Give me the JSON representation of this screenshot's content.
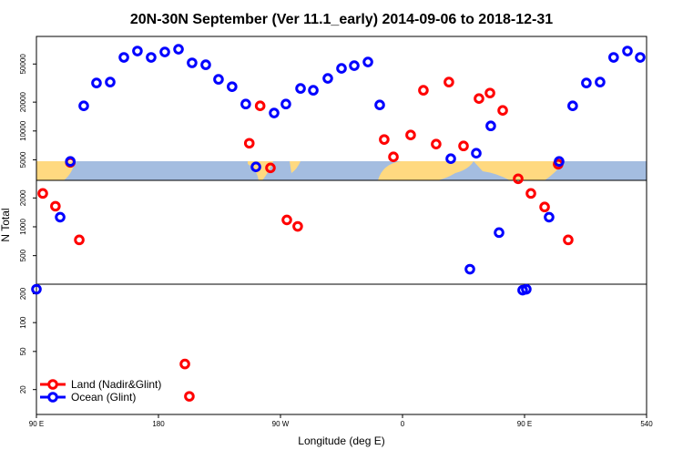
{
  "chart_data": {
    "type": "scatter",
    "title": "20N-30N September (Ver 11.1_early)   2014-09-06 to 2018-12-31",
    "x_label": "Longitude (deg E)",
    "y_label": "N Total",
    "log_y": true,
    "legend": "bottom-left",
    "xlim": [
      90,
      540
    ],
    "xticks": [
      {
        "value": 90,
        "label": "90 E"
      },
      180,
      {
        "value": 270,
        "label": "90 W"
      },
      {
        "value": 360,
        "label": "0"
      },
      {
        "value": 450,
        "label": "90 E"
      },
      540
    ],
    "ylim": [
      11,
      97000
    ],
    "yticks": [
      20,
      50,
      100,
      200,
      500,
      1000,
      2000,
      5000,
      10000,
      20000,
      50000
    ],
    "series": [
      {
        "name": "Land (Nadir&Glint)",
        "color": "#ff0000",
        "x": [
          94.7,
          104,
          115,
          121.6,
          199.5,
          202.8,
          247,
          255,
          262.6,
          274.7,
          282.7,
          346.5,
          353.3,
          366,
          375.4,
          384.8,
          394.2,
          405,
          416.4,
          424.5,
          433.9,
          445.3,
          454.7,
          464.8,
          474.8,
          482.2
        ],
        "values": [
          2230,
          1640,
          4700,
          730,
          37,
          17,
          7450,
          18300,
          4120,
          1180,
          1010,
          8150,
          5370,
          9080,
          26600,
          7300,
          32400,
          6980,
          21800,
          24900,
          16400,
          3170,
          2230,
          1610,
          4500,
          730
        ]
      },
      {
        "name": "Ocean (Glint)",
        "color": "#0000ff",
        "x": [
          90,
          107.5,
          115,
          124.9,
          134.3,
          144.4,
          154.5,
          164.5,
          174.6,
          184.7,
          194.8,
          204.8,
          214.9,
          224.3,
          234.3,
          244.4,
          251.9,
          265.3,
          274,
          284.8,
          294.2,
          304.9,
          315,
          324.4,
          334.5,
          343.2,
          395.6,
          409.7,
          414.4,
          425.1,
          431.2,
          448.6,
          451.3,
          468.1,
          475.5,
          485.5,
          495.6,
          505.7,
          515.7,
          525.9,
          535.3
        ],
        "values": [
          223,
          1260,
          4810,
          18300,
          31700,
          32400,
          58600,
          68300,
          58600,
          66800,
          71300,
          51400,
          49100,
          34600,
          29000,
          19100,
          4220,
          15400,
          19100,
          27800,
          26600,
          35400,
          45000,
          48100,
          52500,
          18700,
          5140,
          361,
          5860,
          11300,
          870,
          218,
          223,
          1260,
          4810,
          18300,
          31700,
          32400,
          58600,
          68300,
          58600
        ]
      }
    ]
  }
}
